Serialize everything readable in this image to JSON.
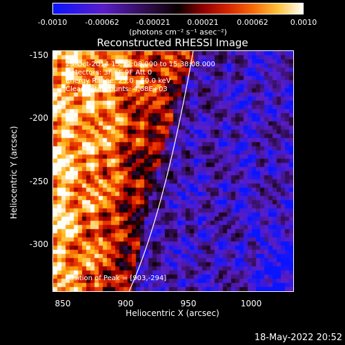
{
  "colorbar": {
    "ticks": [
      "-0.0010",
      "-0.00062",
      "-0.00021",
      "0.00021",
      "0.00062",
      "0.0010"
    ],
    "units": "(photons cm⁻² s⁻¹ asec⁻²)"
  },
  "title": "Reconstructed RHESSI Image",
  "info": {
    "time": "29-Oct-2014 15:32:08.000 to 15:38:08.000",
    "detectors": "Detectors: 3F 6F 9F  Att 0",
    "energy": "Energy Range: 25.0 - 50.0 keV",
    "clean": "Clean     Total counts: 4.68E+03",
    "peak": "Position of Peak = [903,-294]"
  },
  "axes": {
    "x_label": "Heliocentric X (arcsec)",
    "y_label": "Heliocentric Y (arcsec)",
    "x_ticks": [
      "850",
      "900",
      "950",
      "1000"
    ],
    "y_ticks": [
      "-150",
      "-200",
      "-250",
      "-300"
    ],
    "x_range": [
      835,
      1035
    ],
    "y_range": [
      -340,
      -140
    ]
  },
  "timestamp": "18-May-2022 20:52"
}
